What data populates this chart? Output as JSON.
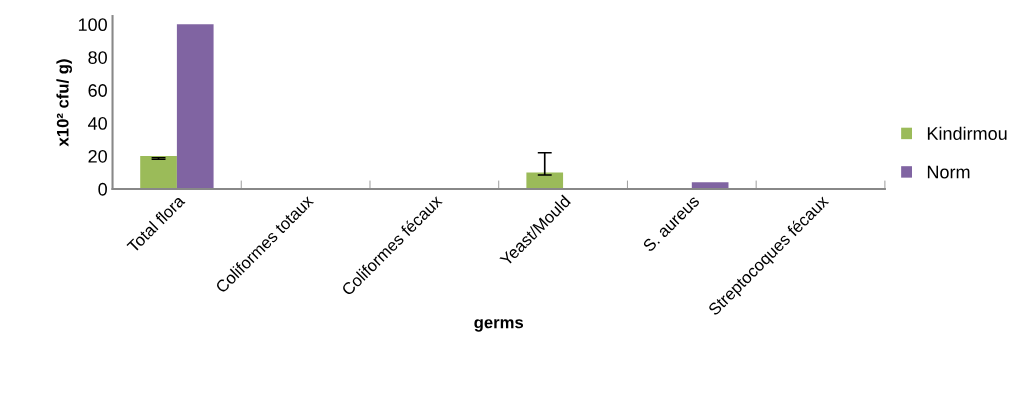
{
  "chart_data": {
    "type": "bar",
    "xlabel": "germs",
    "ylabel": "x10² cfu/ g)",
    "categories": [
      "Total flora",
      "Coliformes totaux",
      "Coliformes fécaux",
      "Yeast/Mould",
      "S. aureus",
      "Streptocoques fécaux"
    ],
    "series": [
      {
        "name": "Kindirmou",
        "color": "#9bbb59",
        "values": [
          20,
          0,
          0,
          10,
          0,
          0
        ],
        "errors": [
          [
            18,
            19
          ],
          null,
          null,
          [
            8.5,
            22
          ],
          null,
          null
        ]
      },
      {
        "name": "Norm",
        "color": "#8064a2",
        "values": [
          100,
          0,
          0,
          0,
          4,
          0
        ]
      }
    ],
    "ylim": [
      0,
      105
    ],
    "yticks": [
      0,
      20,
      40,
      60,
      80,
      100
    ],
    "grid": false,
    "legend": "right"
  }
}
